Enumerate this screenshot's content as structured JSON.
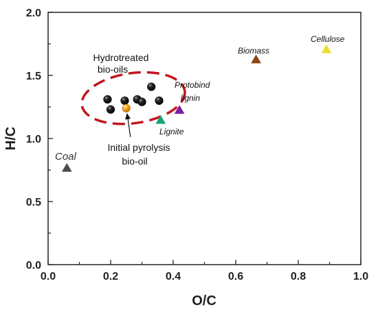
{
  "chart_data": {
    "type": "scatter",
    "xlabel": "O/C",
    "ylabel": "H/C",
    "xlim": [
      0.0,
      1.0
    ],
    "ylim": [
      0.0,
      2.0
    ],
    "x_ticks": [
      "0.0",
      "0.2",
      "0.4",
      "0.6",
      "0.8",
      "1.0"
    ],
    "y_ticks": [
      "0.0",
      "0.5",
      "1.0",
      "1.5",
      "2.0"
    ],
    "grid": false,
    "legend": "none",
    "series": [
      {
        "marker": "sphere",
        "color": "#111111",
        "points": [
          {
            "x": 0.19,
            "y": 1.31
          },
          {
            "x": 0.2,
            "y": 1.23
          },
          {
            "x": 0.245,
            "y": 1.3
          },
          {
            "x": 0.285,
            "y": 1.31
          },
          {
            "x": 0.3,
            "y": 1.29
          },
          {
            "x": 0.33,
            "y": 1.41
          },
          {
            "x": 0.355,
            "y": 1.3
          }
        ]
      },
      {
        "marker": "sphere",
        "color": "#f5a623",
        "points": [
          {
            "x": 0.25,
            "y": 1.24
          }
        ]
      },
      {
        "marker": "triangle",
        "points": [
          {
            "x": 0.06,
            "y": 0.77,
            "color": "#4a4a4a"
          },
          {
            "x": 0.36,
            "y": 1.15,
            "color": "#1aa37a"
          },
          {
            "x": 0.42,
            "y": 1.23,
            "color": "#7b1fa2"
          },
          {
            "x": 0.665,
            "y": 1.63,
            "color": "#8b4513"
          },
          {
            "x": 0.89,
            "y": 1.71,
            "color": "#e8e030"
          }
        ]
      }
    ],
    "annotations": {
      "coal": "Coal",
      "lignite": "Lignite",
      "protobind_1": "Protobind",
      "protobind_2": "lignin",
      "biomass": "Biomass",
      "cellulose": "Cellulose",
      "hydrotreated_1": "Hydrotreated",
      "hydrotreated_2": "bio-oils",
      "initial_1": "Initial pyrolysis",
      "initial_2": "bio-oil"
    },
    "highlight": {
      "shape": "dashed-ellipse",
      "color": "#c0161d"
    }
  }
}
